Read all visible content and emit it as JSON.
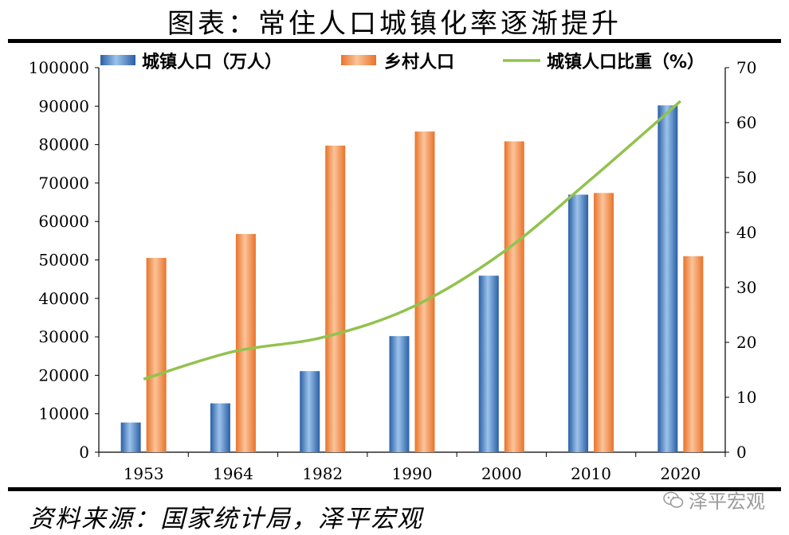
{
  "title": "图表：常住人口城镇化率逐渐提升",
  "source": "资料来源：国家统计局，泽平宏观",
  "watermark": "泽平宏观",
  "chart_data": {
    "type": "bar",
    "categories": [
      "1953",
      "1964",
      "1982",
      "1990",
      "2000",
      "2010",
      "2020"
    ],
    "series": [
      {
        "name": "城镇人口（万人）",
        "kind": "bar",
        "axis": "left",
        "color": "#3a73b8",
        "values": [
          7726,
          12710,
          21082,
          30195,
          45906,
          66978,
          90199
        ]
      },
      {
        "name": "乡村人口",
        "kind": "bar",
        "axis": "left",
        "color": "#f08a3c",
        "values": [
          50534,
          56748,
          79736,
          83397,
          80837,
          67415,
          50979
        ]
      },
      {
        "name": "城镇人口比重（%）",
        "kind": "line",
        "axis": "right",
        "color": "#92c24f",
        "values": [
          13.3,
          18.3,
          20.9,
          26.4,
          36.2,
          49.7,
          63.9
        ]
      }
    ],
    "y_left": {
      "min": 0,
      "max": 100000,
      "ticks": [
        "0",
        "10000",
        "20000",
        "30000",
        "40000",
        "50000",
        "60000",
        "70000",
        "80000",
        "90000",
        "100000"
      ]
    },
    "y_right": {
      "min": 0,
      "max": 70,
      "ticks": [
        "0",
        "10",
        "20",
        "30",
        "40",
        "50",
        "60",
        "70"
      ]
    },
    "legend_position": "top"
  }
}
